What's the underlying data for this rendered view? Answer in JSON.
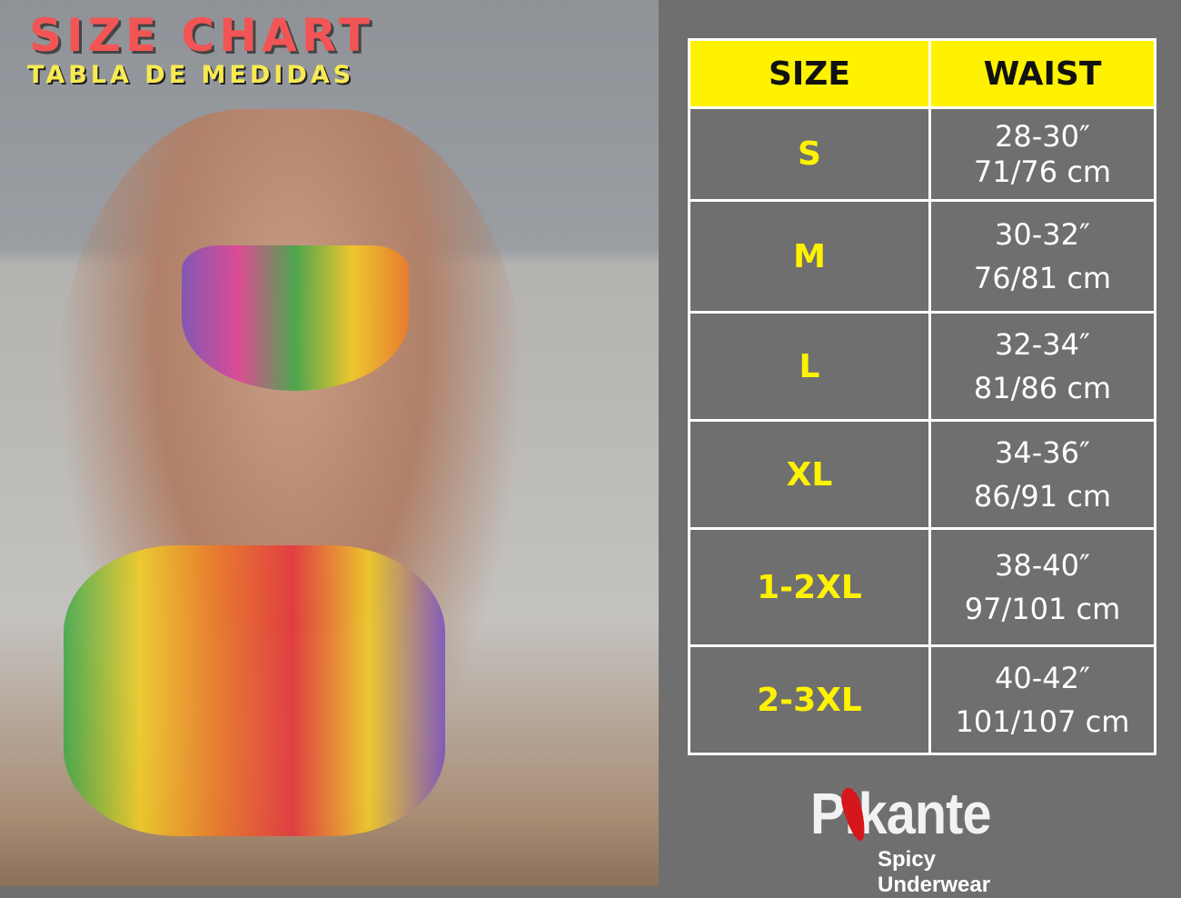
{
  "photo": {
    "title": "SIZE CHART",
    "subtitle": "TABLA DE MEDIDAS"
  },
  "table": {
    "headers": [
      "SIZE",
      "WAIST"
    ],
    "rows": [
      {
        "size": "S",
        "inches": "28-30″",
        "cm": "71/76 cm"
      },
      {
        "size": "M",
        "inches": "30-32″",
        "cm": "76/81 cm"
      },
      {
        "size": "L",
        "inches": "32-34″",
        "cm": "81/86 cm"
      },
      {
        "size": "XL",
        "inches": "34-36″",
        "cm": "86/91 cm"
      },
      {
        "size": "1-2XL",
        "inches": "38-40″",
        "cm": "97/101 cm"
      },
      {
        "size": "2-3XL",
        "inches": "40-42″",
        "cm": "101/107 cm"
      }
    ]
  },
  "logo": {
    "brand": "Pikante",
    "tagline": "Spicy Underwear"
  },
  "colors": {
    "header": "#fff200",
    "size_text": "#fff200",
    "panel": "#6f6f6f",
    "title": "#f25555",
    "subtitle": "#f7ea52"
  }
}
